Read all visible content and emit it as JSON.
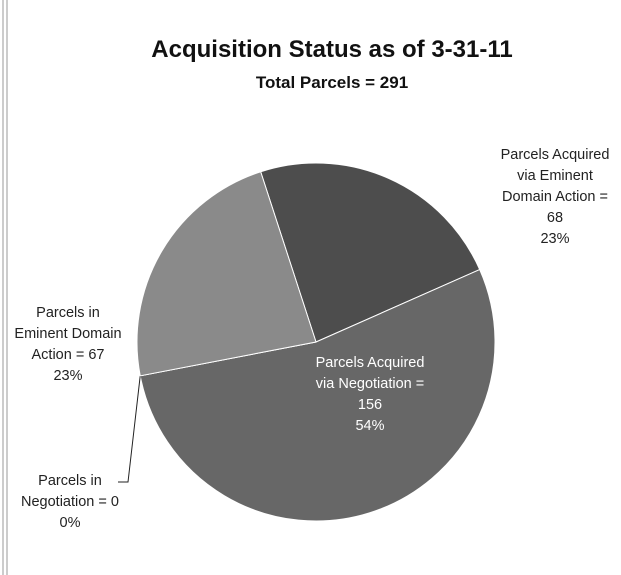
{
  "chart_data": {
    "type": "pie",
    "title": "Acquisition Status as of 3-31-11",
    "subtitle": "Total Parcels = 291",
    "categories": [
      "Parcels Acquired via Eminent Domain Action",
      "Parcels Acquired via Negotiation",
      "Parcels in Negotiation",
      "Parcels in Eminent Domain Action"
    ],
    "values": [
      68,
      156,
      0,
      67
    ],
    "value_labels": [
      "= 68",
      "= 156",
      "= 0",
      "= 67"
    ],
    "percent_labels": [
      "23%",
      "54%",
      "0%",
      "23%"
    ],
    "colors": [
      "#4d4d4d",
      "#676767",
      "#a6a6a6",
      "#8a8a8a"
    ]
  }
}
